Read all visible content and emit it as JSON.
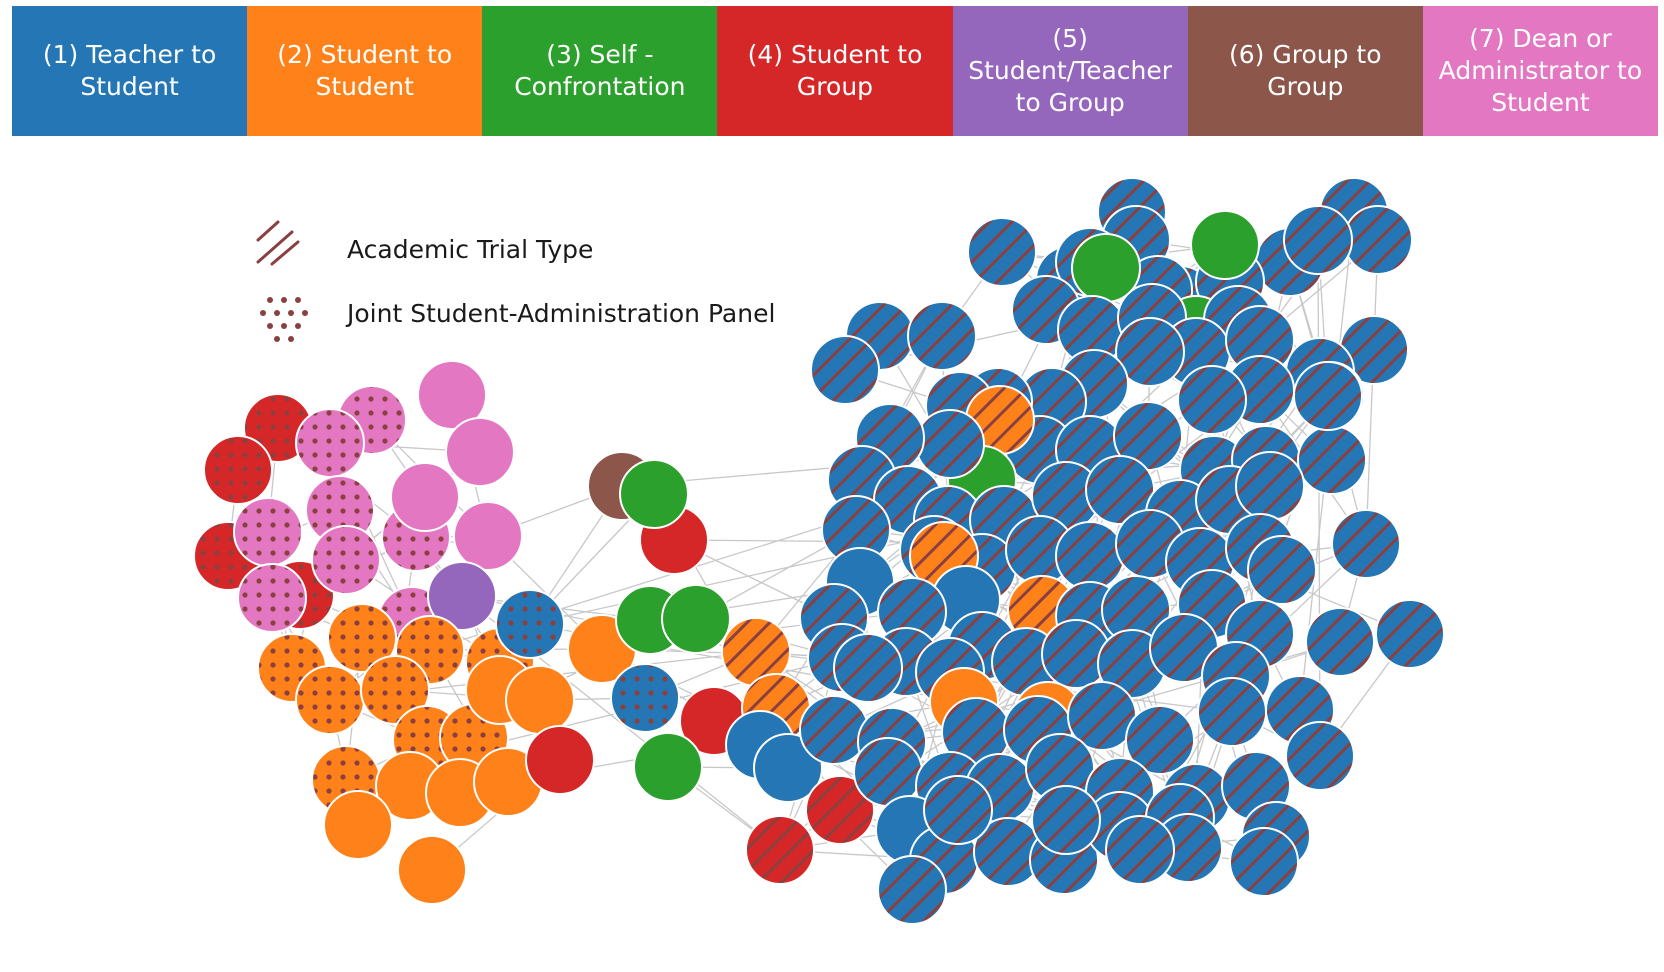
{
  "categories": [
    {
      "id": 1,
      "label": "(1) Teacher to Student",
      "color": "#2476b4"
    },
    {
      "id": 2,
      "label": "(2) Student to Student",
      "color": "#ff8119"
    },
    {
      "id": 3,
      "label": "(3) Self - Confrontation",
      "color": "#2ca02c"
    },
    {
      "id": 4,
      "label": "(4) Student to Group",
      "color": "#d62728"
    },
    {
      "id": 5,
      "label": "(5) Student/Teacher to Group",
      "color": "#9467bd"
    },
    {
      "id": 6,
      "label": "(6) Group to Group",
      "color": "#8c564b"
    },
    {
      "id": 7,
      "label": "(7) Dean or Administrator to Student",
      "color": "#e377c2"
    }
  ],
  "pattern_legend": {
    "academic": {
      "label": "Academic Trial Type",
      "icon": "diagonal-hatch-icon"
    },
    "joint": {
      "label": "Joint Student-Administration Panel",
      "icon": "dot-grid-icon"
    }
  },
  "marker_color": "#8b4040",
  "edge_color": "#c8c8c8"
}
